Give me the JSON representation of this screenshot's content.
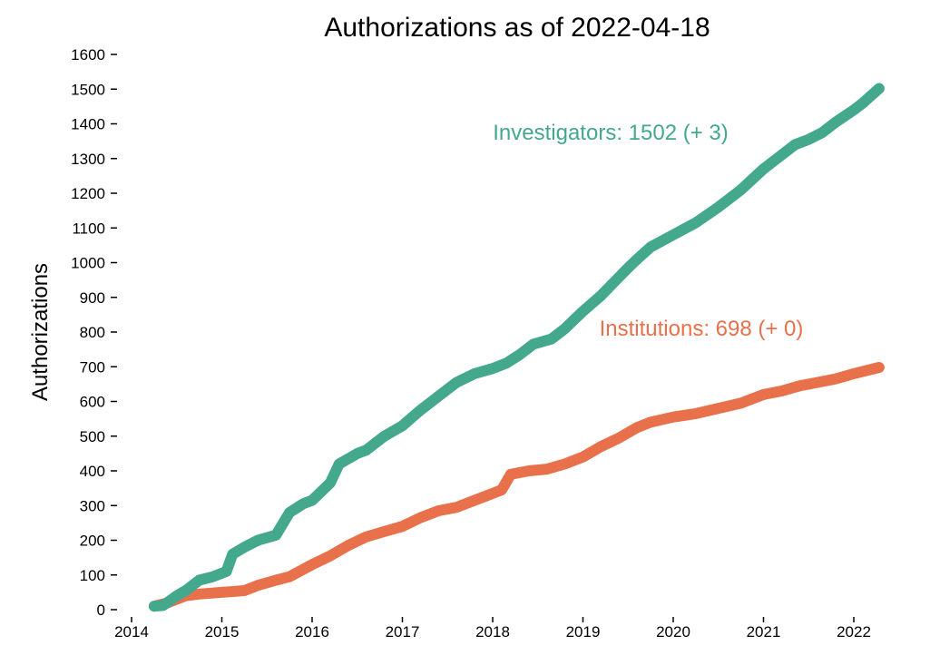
{
  "chart_data": {
    "type": "line",
    "title": "Authorizations as of  2022-04-18",
    "xlabel": "",
    "ylabel": "Authorizations",
    "xlim": [
      2014.0,
      2022.35
    ],
    "ylim": [
      0,
      1600
    ],
    "x_ticks": [
      2014,
      2015,
      2016,
      2017,
      2018,
      2019,
      2020,
      2021,
      2022
    ],
    "y_ticks": [
      0,
      100,
      200,
      300,
      400,
      500,
      600,
      700,
      800,
      900,
      1000,
      1100,
      1200,
      1300,
      1400,
      1500,
      1600
    ],
    "grid": false,
    "legend": "none",
    "series": [
      {
        "name": "Investigators: 1502 (+ 3)",
        "color": "#44a88d",
        "x": [
          2014.25,
          2014.35,
          2014.5,
          2014.6,
          2014.75,
          2014.9,
          2015.05,
          2015.12,
          2015.25,
          2015.4,
          2015.6,
          2015.75,
          2015.9,
          2016.0,
          2016.1,
          2016.2,
          2016.3,
          2016.5,
          2016.6,
          2016.8,
          2017.0,
          2017.2,
          2017.4,
          2017.6,
          2017.8,
          2018.0,
          2018.15,
          2018.3,
          2018.45,
          2018.65,
          2018.8,
          2019.0,
          2019.2,
          2019.35,
          2019.5,
          2019.6,
          2019.75,
          2020.0,
          2020.25,
          2020.5,
          2020.75,
          2021.0,
          2021.2,
          2021.35,
          2021.5,
          2021.65,
          2021.8,
          2022.0,
          2022.1,
          2022.28
        ],
        "y": [
          10,
          12,
          40,
          55,
          85,
          95,
          110,
          160,
          180,
          200,
          215,
          280,
          305,
          315,
          340,
          365,
          420,
          450,
          460,
          500,
          530,
          575,
          615,
          655,
          680,
          695,
          710,
          735,
          765,
          780,
          810,
          860,
          905,
          945,
          985,
          1010,
          1045,
          1080,
          1115,
          1160,
          1210,
          1270,
          1310,
          1340,
          1355,
          1375,
          1405,
          1440,
          1460,
          1502
        ]
      },
      {
        "name": "Institutions: 698 (+ 0)",
        "color": "#e8704a",
        "x": [
          2014.25,
          2014.4,
          2014.6,
          2014.75,
          2015.0,
          2015.25,
          2015.4,
          2015.6,
          2015.75,
          2016.0,
          2016.2,
          2016.4,
          2016.6,
          2016.8,
          2017.0,
          2017.2,
          2017.4,
          2017.6,
          2017.8,
          2018.0,
          2018.1,
          2018.2,
          2018.4,
          2018.6,
          2018.8,
          2019.0,
          2019.2,
          2019.4,
          2019.6,
          2019.75,
          2020.0,
          2020.25,
          2020.5,
          2020.75,
          2021.0,
          2021.2,
          2021.4,
          2021.6,
          2021.8,
          2022.0,
          2022.28
        ],
        "y": [
          10,
          20,
          40,
          45,
          50,
          55,
          70,
          85,
          95,
          130,
          155,
          185,
          210,
          225,
          240,
          265,
          285,
          295,
          315,
          335,
          345,
          390,
          400,
          405,
          420,
          440,
          470,
          495,
          525,
          540,
          555,
          565,
          580,
          595,
          620,
          630,
          645,
          655,
          665,
          680,
          698
        ]
      }
    ]
  }
}
